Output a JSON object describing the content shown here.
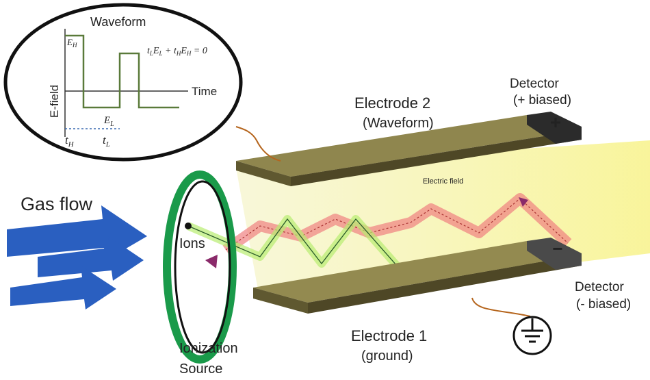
{
  "waveform_inset": {
    "title": "Waveform",
    "y_axis_label": "E-field",
    "x_axis_label": "Time",
    "high_field": {
      "symbol": "E",
      "subscript": "H"
    },
    "low_field": {
      "symbol": "E",
      "subscript": "L"
    },
    "high_time": {
      "symbol": "t",
      "subscript": "H"
    },
    "low_time": {
      "symbol": "t",
      "subscript": "L"
    },
    "equation": [
      "t",
      "L",
      "E",
      "L",
      " + ",
      "t",
      "H",
      "E",
      "H",
      " = 0"
    ]
  },
  "gas_flow": "Gas flow",
  "ions": "Ions",
  "ionization_source": [
    "Ionization",
    "Source"
  ],
  "electrode_2": {
    "name": "Electrode 2",
    "role": "(Waveform)"
  },
  "electrode_1": {
    "name": "Electrode 1",
    "role": "(ground)"
  },
  "electric_field": "Electric field",
  "detector_positive": {
    "name": "Detector",
    "bias": "(+ biased)",
    "sign": "+"
  },
  "detector_negative": {
    "name": "Detector",
    "bias": "(- biased)",
    "sign": "−"
  }
}
